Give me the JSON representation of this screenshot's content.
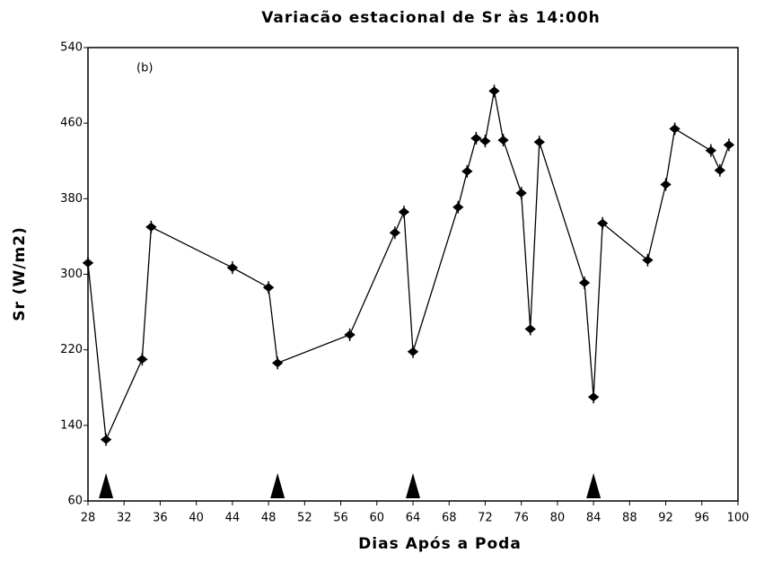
{
  "chart_data": {
    "type": "line",
    "title": "Variacão estacional de Sr às 14:00h",
    "xlabel": "Dias Após a Poda",
    "ylabel": "Sr (W/m2)",
    "annotation": "(b)",
    "x": [
      28,
      30,
      34,
      35,
      44,
      48,
      49,
      57,
      62,
      63,
      64,
      69,
      70,
      71,
      72,
      73,
      74,
      76,
      77,
      78,
      83,
      84,
      85,
      90,
      92,
      93,
      97,
      98,
      99
    ],
    "series": [
      {
        "color": "#000000",
        "values": [
          312,
          125,
          210,
          350,
          307,
          286,
          206,
          236,
          344,
          366,
          218,
          371,
          409,
          444,
          441,
          494,
          442,
          386,
          242,
          440,
          291,
          170,
          354,
          315,
          395,
          454,
          431,
          410,
          437
        ]
      }
    ],
    "markers": [
      30,
      49,
      64,
      84
    ],
    "xlim": [
      28,
      100
    ],
    "xticks": [
      28,
      32,
      36,
      40,
      44,
      48,
      52,
      56,
      60,
      64,
      68,
      72,
      76,
      80,
      84,
      88,
      92,
      96,
      100
    ],
    "ylim": [
      60,
      540
    ],
    "yticks": [
      60,
      140,
      220,
      300,
      380,
      460,
      540
    ]
  }
}
